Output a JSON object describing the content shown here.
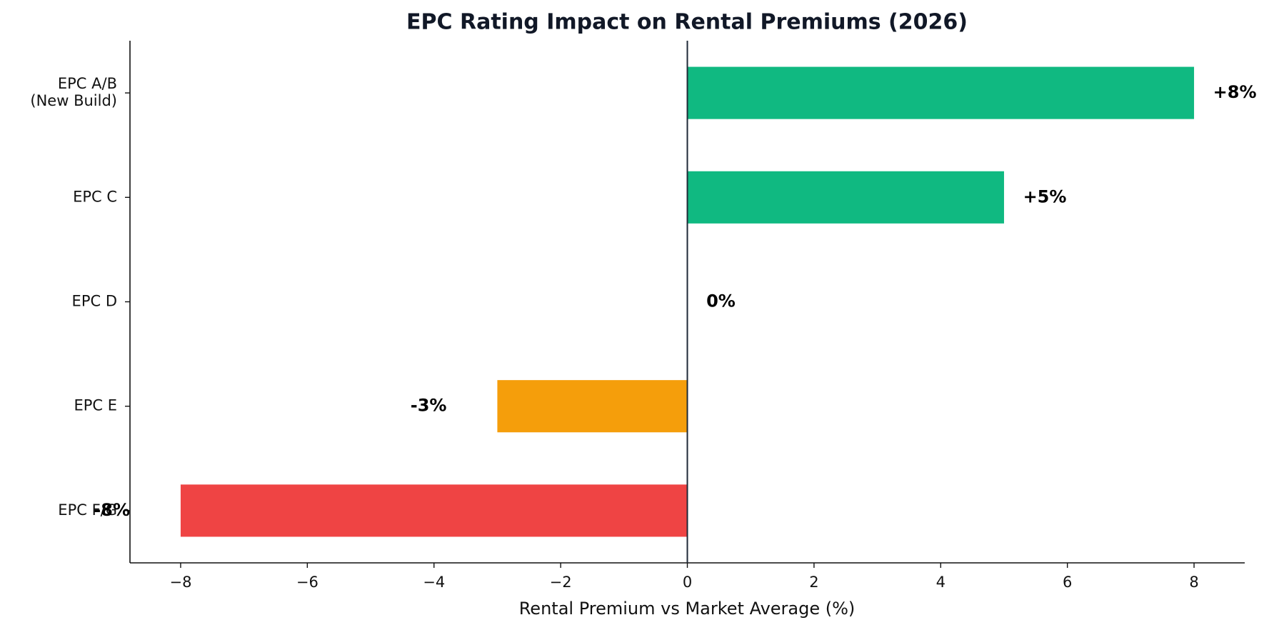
{
  "chart_data": {
    "type": "barh",
    "title": "EPC Rating Impact on Rental Premiums (2026)",
    "x_label": "Rental Premium vs Market Average (%)",
    "categories": [
      "EPC A/B\n(New Build)",
      "EPC C",
      "EPC D",
      "EPC E",
      "EPC F/G"
    ],
    "values": [
      8,
      5,
      0,
      -3,
      -8
    ],
    "value_labels": [
      "+8%",
      "+5%",
      "0%",
      "-3%",
      "-8%"
    ],
    "colors": [
      "#10b981",
      "#10b981",
      "#9ca3af",
      "#f59e0b",
      "#ef4444"
    ],
    "xlim": [
      -8.8,
      8.8
    ],
    "xticks": [
      {
        "value": -8,
        "label": "−8"
      },
      {
        "value": -6,
        "label": "−6"
      },
      {
        "value": -4,
        "label": "−4"
      },
      {
        "value": -2,
        "label": "−2"
      },
      0,
      2,
      4,
      6,
      8
    ],
    "grid": false
  }
}
